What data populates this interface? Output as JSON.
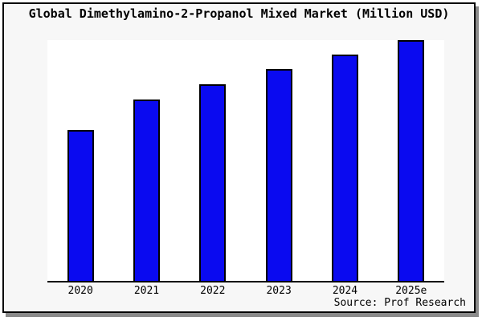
{
  "chart_data": {
    "type": "bar",
    "title": "Global Dimethylamino-2-Propanol Mixed Market (Million USD)",
    "categories": [
      "2020",
      "2021",
      "2022",
      "2023",
      "2024",
      "2025e"
    ],
    "values": [
      62.7,
      75.3,
      81.7,
      88.0,
      94.0,
      100.0
    ],
    "value_basis": "relative bar heights estimated from pixels, 2025e = 100; chart shows no y-axis or value labels",
    "xlabel": "",
    "ylabel": "",
    "ylim": [
      0,
      100
    ],
    "grid": false,
    "legend": false,
    "bar_color": "#0a0af0",
    "bar_border_color": "#000000"
  },
  "footer": {
    "source": "Source: Prof Research"
  },
  "colors": {
    "frame_background": "#f7f7f7",
    "plot_background": "#ffffff",
    "frame_border": "#000000",
    "shadow": "#8a8a8a",
    "text": "#000000"
  }
}
